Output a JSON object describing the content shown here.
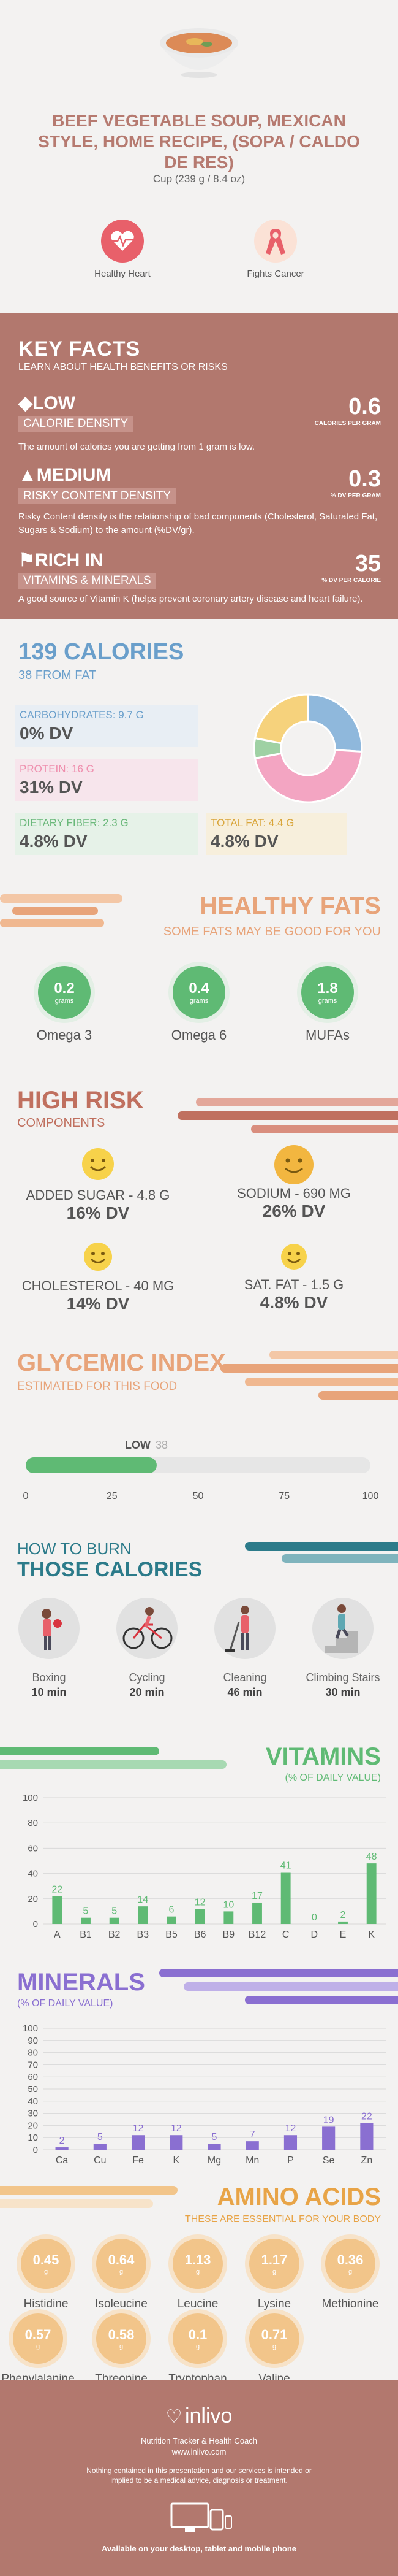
{
  "header": {
    "title": "BEEF VEGETABLE SOUP, MEXICAN STYLE, HOME RECIPE, (SOPA / CALDO DE RES)",
    "serving": "Cup (239 g / 8.4 oz)",
    "benefits": [
      {
        "label": "Healthy Heart",
        "icon": "heart-pulse-icon",
        "color": "#e8606a"
      },
      {
        "label": "Fights Cancer",
        "icon": "cancer-ribbon-icon",
        "color": "#e8606a"
      }
    ]
  },
  "key_facts": {
    "title": "KEY FACTS",
    "subtitle": "LEARN ABOUT HEALTH BENEFITS OR RISKS",
    "facts": [
      {
        "level": "LOW",
        "label": "CALORIE DENSITY",
        "value": "0.6",
        "unit": "CALORIES PER GRAM",
        "desc": "The amount of calories you are getting from 1 gram is low.",
        "icon": "flame-icon"
      },
      {
        "level": "MEDIUM",
        "label": "RISKY CONTENT DENSITY",
        "value": "0.3",
        "unit": "% DV PER GRAM",
        "desc": "Risky Content density is the relationship of bad components (Cholesterol, Saturated Fat, Sugars & Sodium) to the amount (%DV/gr).",
        "icon": "warning-icon"
      },
      {
        "level": "RICH IN",
        "label": "VITAMINS & MINERALS",
        "value": "35",
        "unit": "% DV PER CALORIE",
        "desc": "A good source of Vitamin K (helps prevent coronary artery disease and heart failure).",
        "icon": "check-flag-icon"
      }
    ]
  },
  "calories": {
    "title": "139 CALORIES",
    "subtitle": "38 FROM FAT",
    "nutrients": [
      {
        "label": "CARBOHYDRATES: 9.7 g",
        "dv": "0% DV",
        "color": "#6a9fcb"
      },
      {
        "label": "PROTEIN: 16 g",
        "dv": "31% DV",
        "color": "#ef8fae"
      },
      {
        "label": "DIETARY FIBER: 2.3 g",
        "dv": "4.8% DV",
        "color": "#6ab87a"
      },
      {
        "label": "TOTAL FAT: 4.4 g",
        "dv": "4.8% DV",
        "color": "#e8b54a"
      }
    ]
  },
  "chart_data": [
    {
      "type": "pie",
      "title": "",
      "categories": [
        "Carbohydrates",
        "Protein",
        "Dietary fiber",
        "Total fat"
      ],
      "values": [
        26,
        46,
        6,
        22
      ],
      "colors": [
        "#8fb8dc",
        "#f3a5c2",
        "#9fd1a4",
        "#f6d27c"
      ]
    },
    {
      "type": "bar",
      "title": "GLYCEMIC INDEX",
      "categories": [
        "LOW"
      ],
      "values": [
        38
      ],
      "xlim": [
        0,
        100
      ],
      "ticks": [
        "0",
        "25",
        "50",
        "75",
        "100"
      ]
    },
    {
      "type": "bar",
      "title": "VITAMINS",
      "subtitle": "(% OF DAILY VALUE)",
      "categories": [
        "A",
        "B1",
        "B2",
        "B3",
        "B5",
        "B6",
        "B9",
        "B12",
        "C",
        "D",
        "E",
        "K"
      ],
      "values": [
        22,
        5,
        5,
        14,
        6,
        12,
        10,
        17,
        41,
        0,
        2,
        48
      ],
      "ylim": [
        0,
        100
      ],
      "yticks": [
        "0",
        "20",
        "40",
        "60",
        "80",
        "100"
      ]
    },
    {
      "type": "bar",
      "title": "MINERALS",
      "subtitle": "(% OF DAILY VALUE)",
      "categories": [
        "Ca",
        "Cu",
        "Fe",
        "K",
        "Mg",
        "Mn",
        "P",
        "Se",
        "Zn"
      ],
      "values": [
        2,
        5,
        12,
        12,
        5,
        7,
        12,
        19,
        22
      ],
      "ylim": [
        0,
        100
      ],
      "yticks": [
        "0",
        "10",
        "20",
        "30",
        "40",
        "50",
        "60",
        "70",
        "80",
        "90",
        "100"
      ]
    }
  ],
  "healthy_fats": {
    "title": "HEALTHY FATS",
    "subtitle": "SOME FATS MAY BE GOOD FOR YOU",
    "unit": "grams",
    "items": [
      {
        "value": "0.2",
        "label": "Omega 3"
      },
      {
        "value": "0.4",
        "label": "Omega 6"
      },
      {
        "value": "1.8",
        "label": "MUFAs"
      }
    ]
  },
  "high_risk": {
    "title": "HIGH RISK",
    "subtitle": "COMPONENTS",
    "items": [
      {
        "label": "ADDED SUGAR - 4.8 g",
        "dv": "16% DV"
      },
      {
        "label": "SODIUM - 690 mg",
        "dv": "26% DV"
      },
      {
        "label": "CHOLESTEROL - 40 mg",
        "dv": "14% DV"
      },
      {
        "label": "SAT. FAT - 1.5 g",
        "dv": "4.8% DV"
      }
    ]
  },
  "glycemic": {
    "title": "GLYCEMIC INDEX",
    "subtitle": "ESTIMATED FOR THIS FOOD",
    "level": "LOW",
    "value": "38"
  },
  "burn": {
    "title1": "HOW TO BURN",
    "title2": "THOSE CALORIES",
    "activities": [
      {
        "label": "Boxing",
        "time": "10 min",
        "icon": "boxing-icon"
      },
      {
        "label": "Cycling",
        "time": "20 min",
        "icon": "cycling-icon"
      },
      {
        "label": "Cleaning",
        "time": "46 min",
        "icon": "cleaning-icon"
      },
      {
        "label": "Climbing Stairs",
        "time": "30 min",
        "icon": "stairs-icon"
      }
    ]
  },
  "vitamins": {
    "title": "VITAMINS",
    "subtitle": "(% OF DAILY VALUE)",
    "color": "#5fba74"
  },
  "minerals": {
    "title": "MINERALS",
    "subtitle": "(% OF DAILY VALUE)",
    "color": "#8a6fd1"
  },
  "amino_acids": {
    "title": "AMINO ACIDS",
    "subtitle": "THESE ARE ESSENTIAL FOR YOUR BODY",
    "unit": "g",
    "items": [
      {
        "value": "0.45",
        "label": "Histidine"
      },
      {
        "value": "0.64",
        "label": "Isoleucine"
      },
      {
        "value": "1.13",
        "label": "Leucine"
      },
      {
        "value": "1.17",
        "label": "Lysine"
      },
      {
        "value": "0.36",
        "label": "Methionine"
      },
      {
        "value": "0.57",
        "label": "Phenylalanine"
      },
      {
        "value": "0.58",
        "label": "Threonine"
      },
      {
        "value": "0.1",
        "label": "Tryptophan"
      },
      {
        "value": "0.71",
        "label": "Valine"
      }
    ]
  },
  "footer": {
    "brand": "inlivo",
    "tagline": "Nutrition Tracker & Health Coach",
    "url": "www.inlivo.com",
    "disclaimer": "Nothing contained in this presentation and our services is intended or implied to be a medical advice, diagnosis or treatment.",
    "available": "Available on your desktop, tablet and mobile phone"
  }
}
